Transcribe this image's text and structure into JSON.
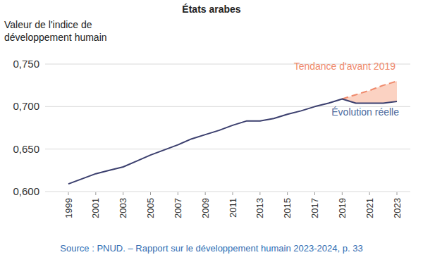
{
  "chart_data": {
    "type": "line",
    "title": "États arabes",
    "y_label": "Valeur de l'indice de développement humain",
    "source": "Source : PNUD. – Rapport sur le développement humain 2023-2024, p. 33",
    "x": [
      1999,
      2000,
      2001,
      2002,
      2003,
      2004,
      2005,
      2006,
      2007,
      2008,
      2009,
      2010,
      2011,
      2012,
      2013,
      2014,
      2015,
      2016,
      2017,
      2018,
      2019,
      2020,
      2021,
      2022,
      2023
    ],
    "xlim": [
      1999,
      2023
    ],
    "xticks": [
      1999,
      2001,
      2003,
      2005,
      2007,
      2009,
      2011,
      2013,
      2015,
      2017,
      2019,
      2021,
      2023
    ],
    "ylim": [
      0.6,
      0.75
    ],
    "yticks": [
      {
        "value": 0.6,
        "label": "0,600"
      },
      {
        "value": 0.65,
        "label": "0,650"
      },
      {
        "value": 0.7,
        "label": "0,700"
      },
      {
        "value": 0.75,
        "label": "0,750"
      }
    ],
    "grid": true,
    "series": [
      {
        "name": "Évolution réelle",
        "color": "#3b3f6e",
        "line_style": "solid",
        "values": [
          0.609,
          0.615,
          0.621,
          0.625,
          0.629,
          0.636,
          0.643,
          0.649,
          0.655,
          0.662,
          0.667,
          0.672,
          0.678,
          0.683,
          0.683,
          0.686,
          0.691,
          0.695,
          0.7,
          0.704,
          0.709,
          0.704,
          0.704,
          0.704,
          0.706
        ]
      },
      {
        "name": "Tendance d'avant 2019",
        "color": "#ef8a6c",
        "line_style": "dashed",
        "values": [
          null,
          null,
          null,
          null,
          null,
          null,
          null,
          null,
          null,
          null,
          null,
          null,
          null,
          null,
          null,
          null,
          null,
          null,
          null,
          null,
          0.709,
          0.714,
          0.719,
          0.725,
          0.73
        ]
      }
    ]
  }
}
